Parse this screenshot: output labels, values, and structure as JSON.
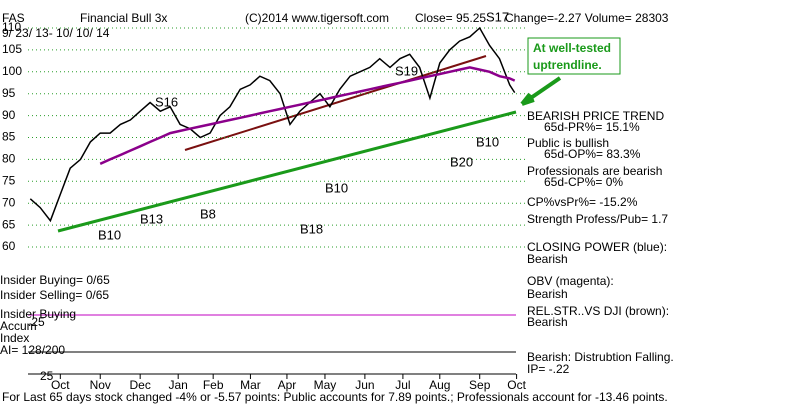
{
  "chart_data": {
    "type": "line",
    "symbol": "FAS",
    "title": "Financial Bull 3x",
    "subtitle": "9/ 23/ 13-  10/ 10/ 14",
    "copyright": "(C)2014 www.tigersoft.com",
    "close": "Close= 95.25",
    "change": "Change=-2.27 Volume= 28303",
    "x": [
      -0.79,
      -0.53,
      -0.26,
      0,
      0.26,
      0.53,
      0.79,
      1.05,
      1.31,
      1.58,
      1.84,
      2.1,
      2.36,
      2.63,
      2.89,
      3.15,
      3.41,
      3.68,
      3.94,
      4.2,
      4.46,
      4.73,
      4.99,
      5.25,
      5.51,
      5.78,
      6.04,
      6.3,
      6.56,
      6.83,
      7.09,
      7.35,
      7.62,
      7.88,
      8.14,
      8.4,
      8.67,
      8.93,
      9.19,
      9.45,
      9.72,
      9.98,
      10.24,
      10.5,
      10.77,
      11.03,
      11.29,
      11.55,
      11.82,
      11.95
    ],
    "series": [
      {
        "color": "#000000",
        "values": [
          71,
          69,
          66,
          72,
          78,
          80,
          84,
          86,
          86,
          88,
          89,
          91,
          93,
          91,
          92,
          88,
          87,
          85,
          86,
          90,
          92,
          96,
          97,
          99,
          98,
          95,
          88,
          91,
          93,
          95,
          92,
          96,
          99,
          100,
          101,
          103,
          101,
          103,
          104,
          101,
          94,
          102,
          105,
          107,
          108,
          110,
          106,
          103,
          97,
          95.25
        ]
      },
      {
        "color": "#8b008b",
        "values": [
          null,
          null,
          null,
          null,
          null,
          null,
          null,
          79,
          80,
          81,
          82,
          83,
          84,
          85,
          86,
          86.5,
          87,
          87.5,
          88,
          88.5,
          89,
          89.5,
          90,
          90.5,
          91,
          91.5,
          92,
          92.5,
          93,
          93.5,
          94,
          94.5,
          95,
          95.5,
          96,
          96.5,
          97,
          97.5,
          98,
          98.5,
          99,
          99.5,
          100,
          100.5,
          101,
          100.5,
          100,
          99,
          98.5,
          98
        ]
      }
    ],
    "xlim": [
      -0.85,
      12.3
    ],
    "xticks": [
      {
        "value": 0,
        "label": "Oct"
      },
      {
        "value": 1.05,
        "label": "Nov"
      },
      {
        "value": 2.1,
        "label": "Dec"
      },
      {
        "value": 3.1,
        "label": "Jan"
      },
      {
        "value": 4.02,
        "label": "Feb"
      },
      {
        "value": 5,
        "label": "Mar"
      },
      {
        "value": 5.96,
        "label": "Apr"
      },
      {
        "value": 6.96,
        "label": "May"
      },
      {
        "value": 8.01,
        "label": "Jun"
      },
      {
        "value": 9.01,
        "label": "Jul"
      },
      {
        "value": 9.98,
        "label": "Aug"
      },
      {
        "value": 11.03,
        "label": "Sep"
      },
      {
        "value": 12,
        "label": "Oct"
      }
    ],
    "ylim": [
      60,
      110
    ],
    "yticks": [
      60,
      65,
      70,
      75,
      80,
      85,
      90,
      95,
      100,
      105,
      110
    ],
    "grid": true,
    "signals": [
      "S16",
      "S19",
      "S17",
      "B10",
      "B13",
      "B8",
      "B18",
      "B10",
      "B20",
      "B10"
    ],
    "callout": [
      "At well-tested",
      "uptrendline."
    ],
    "notes": [
      "BEARISH PRICE TREND",
      "65d-PR%= 15.1%",
      "Public is bullish",
      "65d-OP%= 83.3%",
      "Professionals are bearish",
      "65d-CP%= 0%",
      "CP%vsPr%= -15.2%",
      "Strength Profess/Pub= 1.7",
      "CLOSING POWER (blue):",
      "Bearish",
      "OBV (magenta):",
      "Bearish",
      "REL.STR..VS DJI (brown):",
      "Bearish",
      "Bearish:  Distrubtion Falling.",
      "IP= -.22"
    ],
    "left_labels": [
      "Insider Buying= 0/65",
      "Insider Selling= 0/65",
      "Insider Buying",
      "Accum",
      "Index",
      "AI= 128/200",
      ".25",
      "25"
    ],
    "footer": "For Last 65 days stock changed -4% or -5.57 points:  Public accounts for  7.89 points.;  Professionals account for -13.46 points."
  }
}
